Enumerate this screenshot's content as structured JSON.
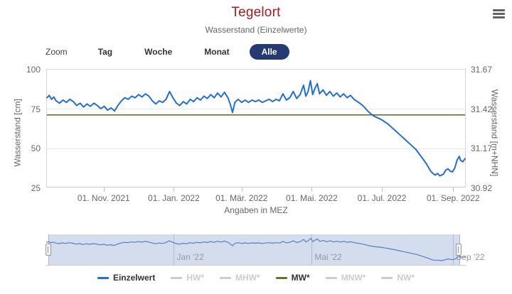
{
  "header": {
    "title": "Tegelort",
    "subtitle": "Wasserstand (Einzelwerte)",
    "menu_icon": "hamburger-icon"
  },
  "range_selector": {
    "zoom_label": "Zoom",
    "buttons": [
      {
        "label": "Tag",
        "selected": false
      },
      {
        "label": "Woche",
        "selected": false
      },
      {
        "label": "Monat",
        "selected": false
      },
      {
        "label": "Alle",
        "selected": true
      }
    ],
    "selected_color": "#253a73"
  },
  "chart_data": {
    "type": "line",
    "title": "Tegelort",
    "subtitle": "Wasserstand (Einzelwerte)",
    "xlabel": "Angaben in MEZ",
    "ylabel_left": "Wasserstand [cm]",
    "ylabel_right": "Wasserstand [m+NHN]",
    "grid": "horizontal",
    "legend_position": "bottom",
    "x_range": [
      "2021-09-12",
      "2022-09-12"
    ],
    "ylim_cm": [
      25,
      100
    ],
    "ylim_m_nhn": [
      30.92,
      31.67
    ],
    "yticks": [
      {
        "cm": 100,
        "left_label": "100",
        "right_label": "31.67"
      },
      {
        "cm": 75,
        "left_label": "75",
        "right_label": "31.42"
      },
      {
        "cm": 50,
        "left_label": "50",
        "right_label": "31.17"
      },
      {
        "cm": 25,
        "left_label": "25",
        "right_label": "30.92"
      }
    ],
    "xticks": [
      {
        "date": "2021-11-01",
        "label": "01. Nov. 2021"
      },
      {
        "date": "2022-01-01",
        "label": "01. Jan. 2022"
      },
      {
        "date": "2022-03-01",
        "label": "01. Mär. 2022"
      },
      {
        "date": "2022-05-01",
        "label": "01. Mai. 2022"
      },
      {
        "date": "2022-07-01",
        "label": "01. Jul. 2022"
      },
      {
        "date": "2022-09-01",
        "label": "01. Sep. 2022"
      }
    ],
    "series": [
      {
        "name": "Einzelwert",
        "color": "#1f6ee0",
        "points": [
          [
            "2021-09-12",
            82
          ],
          [
            "2021-09-14",
            83.5
          ],
          [
            "2021-09-16",
            81
          ],
          [
            "2021-09-18",
            82.5
          ],
          [
            "2021-09-20",
            80
          ],
          [
            "2021-09-23",
            78.5
          ],
          [
            "2021-09-26",
            80.5
          ],
          [
            "2021-09-29",
            79
          ],
          [
            "2021-10-02",
            81
          ],
          [
            "2021-10-05",
            79.5
          ],
          [
            "2021-10-08",
            77
          ],
          [
            "2021-10-11",
            78.5
          ],
          [
            "2021-10-14",
            76
          ],
          [
            "2021-10-17",
            78
          ],
          [
            "2021-10-20",
            76.5
          ],
          [
            "2021-10-23",
            78.5
          ],
          [
            "2021-10-26",
            77
          ],
          [
            "2021-10-29",
            75
          ],
          [
            "2021-11-01",
            76.5
          ],
          [
            "2021-11-04",
            74
          ],
          [
            "2021-11-07",
            75.5
          ],
          [
            "2021-11-10",
            73.5
          ],
          [
            "2021-11-13",
            77
          ],
          [
            "2021-11-16",
            80
          ],
          [
            "2021-11-19",
            82
          ],
          [
            "2021-11-22",
            81
          ],
          [
            "2021-11-25",
            83
          ],
          [
            "2021-11-28",
            82
          ],
          [
            "2021-12-01",
            84
          ],
          [
            "2021-12-04",
            82.5
          ],
          [
            "2021-12-07",
            84.5
          ],
          [
            "2021-12-10",
            83
          ],
          [
            "2021-12-13",
            80
          ],
          [
            "2021-12-16",
            78
          ],
          [
            "2021-12-19",
            80
          ],
          [
            "2021-12-22",
            79
          ],
          [
            "2021-12-25",
            81
          ],
          [
            "2021-12-28",
            86
          ],
          [
            "2021-12-31",
            82
          ],
          [
            "2022-01-03",
            78.5
          ],
          [
            "2022-01-06",
            77
          ],
          [
            "2022-01-09",
            79.5
          ],
          [
            "2022-01-12",
            78
          ],
          [
            "2022-01-15",
            81
          ],
          [
            "2022-01-18",
            79.5
          ],
          [
            "2022-01-21",
            82
          ],
          [
            "2022-01-24",
            80.5
          ],
          [
            "2022-01-27",
            83
          ],
          [
            "2022-01-30",
            81.5
          ],
          [
            "2022-02-02",
            84
          ],
          [
            "2022-02-05",
            82
          ],
          [
            "2022-02-08",
            85
          ],
          [
            "2022-02-11",
            82.5
          ],
          [
            "2022-02-14",
            85.5
          ],
          [
            "2022-02-17",
            82
          ],
          [
            "2022-02-19",
            78
          ],
          [
            "2022-02-21",
            72.5
          ],
          [
            "2022-02-23",
            79
          ],
          [
            "2022-02-26",
            81
          ],
          [
            "2022-03-01",
            79
          ],
          [
            "2022-03-04",
            80.5
          ],
          [
            "2022-03-07",
            79
          ],
          [
            "2022-03-10",
            80.5
          ],
          [
            "2022-03-13",
            79.5
          ],
          [
            "2022-03-16",
            80.5
          ],
          [
            "2022-03-19",
            79
          ],
          [
            "2022-03-22",
            80
          ],
          [
            "2022-03-25",
            81
          ],
          [
            "2022-03-28",
            79.5
          ],
          [
            "2022-03-31",
            81
          ],
          [
            "2022-04-03",
            80
          ],
          [
            "2022-04-06",
            84.5
          ],
          [
            "2022-04-09",
            80.5
          ],
          [
            "2022-04-12",
            82
          ],
          [
            "2022-04-15",
            86
          ],
          [
            "2022-04-18",
            81.5
          ],
          [
            "2022-04-21",
            84
          ],
          [
            "2022-04-24",
            90
          ],
          [
            "2022-04-26",
            83
          ],
          [
            "2022-04-28",
            86
          ],
          [
            "2022-04-30",
            93
          ],
          [
            "2022-05-02",
            84
          ],
          [
            "2022-05-04",
            88
          ],
          [
            "2022-05-06",
            91
          ],
          [
            "2022-05-08",
            84.5
          ],
          [
            "2022-05-11",
            87
          ],
          [
            "2022-05-14",
            83.5
          ],
          [
            "2022-05-17",
            86
          ],
          [
            "2022-05-20",
            83
          ],
          [
            "2022-05-23",
            85
          ],
          [
            "2022-05-26",
            82.5
          ],
          [
            "2022-05-29",
            84.5
          ],
          [
            "2022-06-01",
            82
          ],
          [
            "2022-06-04",
            83.5
          ],
          [
            "2022-06-07",
            81
          ],
          [
            "2022-06-10",
            79.5
          ],
          [
            "2022-06-13",
            78
          ],
          [
            "2022-06-16",
            76
          ],
          [
            "2022-06-19",
            73.5
          ],
          [
            "2022-06-22",
            71.5
          ],
          [
            "2022-06-25",
            70
          ],
          [
            "2022-06-28",
            69
          ],
          [
            "2022-07-01",
            68
          ],
          [
            "2022-07-04",
            66.5
          ],
          [
            "2022-07-07",
            65
          ],
          [
            "2022-07-10",
            63
          ],
          [
            "2022-07-13",
            61
          ],
          [
            "2022-07-16",
            59
          ],
          [
            "2022-07-19",
            57
          ],
          [
            "2022-07-22",
            55
          ],
          [
            "2022-07-25",
            53
          ],
          [
            "2022-07-28",
            51
          ],
          [
            "2022-07-31",
            49
          ],
          [
            "2022-08-03",
            46
          ],
          [
            "2022-08-06",
            43
          ],
          [
            "2022-08-09",
            40
          ],
          [
            "2022-08-11",
            37.5
          ],
          [
            "2022-08-13",
            35
          ],
          [
            "2022-08-15",
            33.5
          ],
          [
            "2022-08-17",
            32.5
          ],
          [
            "2022-08-19",
            33.5
          ],
          [
            "2022-08-21",
            32
          ],
          [
            "2022-08-24",
            33
          ],
          [
            "2022-08-26",
            35.5
          ],
          [
            "2022-08-28",
            36.5
          ],
          [
            "2022-08-30",
            35
          ],
          [
            "2022-09-01",
            34.5
          ],
          [
            "2022-09-03",
            37
          ],
          [
            "2022-09-05",
            42
          ],
          [
            "2022-09-07",
            44.5
          ],
          [
            "2022-09-08",
            42
          ],
          [
            "2022-09-10",
            41
          ],
          [
            "2022-09-12",
            43
          ]
        ]
      },
      {
        "name": "MW*",
        "type": "reference-line",
        "color": "#6f6f2d",
        "value_cm": 71
      }
    ],
    "navigator": {
      "ticks": [
        {
          "date": "2022-01-01",
          "label": "Jan '22"
        },
        {
          "date": "2022-05-01",
          "label": "Mai '22"
        },
        {
          "date": "2022-09-01",
          "label": "Sep '22"
        }
      ],
      "line_color": "#5580c0",
      "selected_range_frac": [
        0.005,
        0.983
      ]
    }
  },
  "legend": {
    "items": [
      {
        "label": "Einzelwert",
        "color": "#1f6ee0",
        "enabled": true
      },
      {
        "label": "HW*",
        "color": "#cccccc",
        "enabled": false
      },
      {
        "label": "MHW*",
        "color": "#cccccc",
        "enabled": false
      },
      {
        "label": "MW*",
        "color": "#6f6f2d",
        "enabled": true
      },
      {
        "label": "MNW*",
        "color": "#cccccc",
        "enabled": false
      },
      {
        "label": "NW*",
        "color": "#cccccc",
        "enabled": false
      }
    ]
  }
}
